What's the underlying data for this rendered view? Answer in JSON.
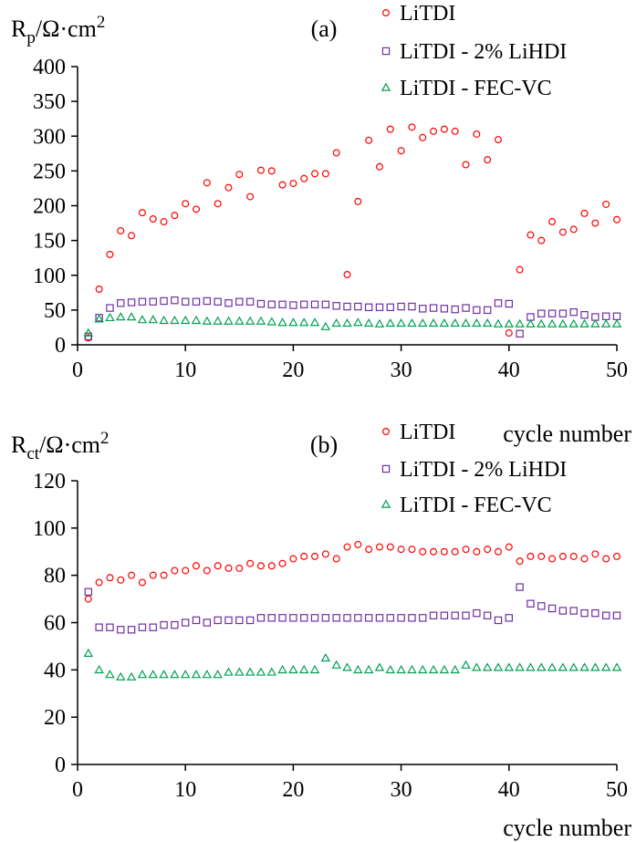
{
  "chart_data": [
    {
      "type": "scatter",
      "panel_label": "(a)",
      "ylabel_main": "R",
      "ylabel_sub": "p",
      "ylabel_unit": "/Ω·cm",
      "ylabel_sup": "2",
      "xlabel": "cycle number",
      "xlim": [
        0,
        50
      ],
      "ylim": [
        0,
        400
      ],
      "x_ticks": [
        "0",
        "10",
        "20",
        "30",
        "40",
        "50"
      ],
      "y_ticks": [
        "0",
        "50",
        "100",
        "150",
        "200",
        "250",
        "300",
        "350",
        "400"
      ],
      "grid": false,
      "legend_position": "top-right",
      "series": [
        {
          "name": "LiTDI",
          "marker": "circle",
          "color": "#ff0000",
          "x": [
            1,
            2,
            3,
            4,
            5,
            6,
            7,
            8,
            9,
            10,
            11,
            12,
            13,
            14,
            15,
            16,
            17,
            18,
            19,
            20,
            21,
            22,
            23,
            24,
            25,
            26,
            27,
            28,
            29,
            30,
            31,
            32,
            33,
            34,
            35,
            36,
            37,
            38,
            39,
            40,
            41,
            42,
            43,
            44,
            45,
            46,
            47,
            48,
            49,
            50
          ],
          "y": [
            10,
            80,
            130,
            164,
            157,
            190,
            181,
            177,
            186,
            203,
            195,
            233,
            203,
            226,
            245,
            213,
            251,
            250,
            230,
            232,
            239,
            246,
            246,
            276,
            101,
            206,
            294,
            256,
            310,
            279,
            313,
            298,
            307,
            310,
            307,
            259,
            303,
            266,
            295,
            17,
            108,
            158,
            150,
            177,
            162,
            166,
            189,
            175,
            202,
            180
          ]
        },
        {
          "name": "LiTDI - 2% LiHDI",
          "marker": "square",
          "color": "#7030a0",
          "x": [
            1,
            2,
            3,
            4,
            5,
            6,
            7,
            8,
            9,
            10,
            11,
            12,
            13,
            14,
            15,
            16,
            17,
            18,
            19,
            20,
            21,
            22,
            23,
            24,
            25,
            26,
            27,
            28,
            29,
            30,
            31,
            32,
            33,
            34,
            35,
            36,
            37,
            38,
            39,
            40,
            41,
            42,
            43,
            44,
            45,
            46,
            47,
            48,
            49,
            50
          ],
          "y": [
            12,
            39,
            53,
            60,
            61,
            62,
            62,
            63,
            64,
            62,
            62,
            63,
            62,
            60,
            62,
            62,
            59,
            58,
            58,
            57,
            58,
            58,
            58,
            56,
            55,
            55,
            54,
            54,
            54,
            55,
            55,
            52,
            53,
            52,
            51,
            53,
            50,
            50,
            60,
            59,
            16,
            40,
            45,
            45,
            45,
            47,
            43,
            40,
            41,
            41
          ]
        },
        {
          "name": "LiTDI - FEC-VC",
          "marker": "triangle",
          "color": "#00a050",
          "x": [
            1,
            2,
            3,
            4,
            5,
            6,
            7,
            8,
            9,
            10,
            11,
            12,
            13,
            14,
            15,
            16,
            17,
            18,
            19,
            20,
            21,
            22,
            23,
            24,
            25,
            26,
            27,
            28,
            29,
            30,
            31,
            32,
            33,
            34,
            35,
            36,
            37,
            38,
            39,
            40,
            41,
            42,
            43,
            44,
            45,
            46,
            47,
            48,
            49,
            50
          ],
          "y": [
            17,
            37,
            39,
            40,
            40,
            36,
            36,
            35,
            35,
            35,
            35,
            34,
            34,
            34,
            34,
            34,
            34,
            33,
            32,
            32,
            32,
            32,
            26,
            31,
            31,
            32,
            31,
            30,
            31,
            31,
            31,
            31,
            31,
            31,
            31,
            31,
            31,
            31,
            30,
            30,
            30,
            30,
            30,
            30,
            30,
            30,
            30,
            30,
            30,
            30
          ]
        }
      ]
    },
    {
      "type": "scatter",
      "panel_label": "(b)",
      "ylabel_main": "R",
      "ylabel_sub": "ct",
      "ylabel_unit": "/Ω·cm",
      "ylabel_sup": "2",
      "xlabel": "cycle number",
      "xlim": [
        0,
        50
      ],
      "ylim": [
        0,
        120
      ],
      "x_ticks": [
        "0",
        "10",
        "20",
        "30",
        "40",
        "50"
      ],
      "y_ticks": [
        "0",
        "20",
        "40",
        "60",
        "80",
        "100",
        "120"
      ],
      "grid": false,
      "legend_position": "top-right",
      "series": [
        {
          "name": "LiTDI",
          "marker": "circle",
          "color": "#ff0000",
          "x": [
            1,
            2,
            3,
            4,
            5,
            6,
            7,
            8,
            9,
            10,
            11,
            12,
            13,
            14,
            15,
            16,
            17,
            18,
            19,
            20,
            21,
            22,
            23,
            24,
            25,
            26,
            27,
            28,
            29,
            30,
            31,
            32,
            33,
            34,
            35,
            36,
            37,
            38,
            39,
            40,
            41,
            42,
            43,
            44,
            45,
            46,
            47,
            48,
            49,
            50
          ],
          "y": [
            70,
            77,
            79,
            78,
            80,
            77,
            80,
            80,
            82,
            82,
            84,
            82,
            84,
            83,
            83,
            85,
            84,
            84,
            85,
            87,
            88,
            88,
            89,
            87,
            92,
            93,
            91,
            92,
            92,
            91,
            91,
            90,
            90,
            90,
            90,
            91,
            90,
            91,
            90,
            92,
            86,
            88,
            88,
            87,
            88,
            88,
            87,
            89,
            87,
            88
          ]
        },
        {
          "name": "LiTDI - 2% LiHDI",
          "marker": "square",
          "color": "#7030a0",
          "x": [
            1,
            2,
            3,
            4,
            5,
            6,
            7,
            8,
            9,
            10,
            11,
            12,
            13,
            14,
            15,
            16,
            17,
            18,
            19,
            20,
            21,
            22,
            23,
            24,
            25,
            26,
            27,
            28,
            29,
            30,
            31,
            32,
            33,
            34,
            35,
            36,
            37,
            38,
            39,
            40,
            41,
            42,
            43,
            44,
            45,
            46,
            47,
            48,
            49,
            50
          ],
          "y": [
            73,
            58,
            58,
            57,
            57,
            58,
            58,
            59,
            59,
            60,
            61,
            60,
            61,
            61,
            61,
            61,
            62,
            62,
            62,
            62,
            62,
            62,
            62,
            62,
            62,
            62,
            62,
            62,
            62,
            62,
            62,
            62,
            63,
            63,
            63,
            63,
            64,
            63,
            61,
            62,
            75,
            68,
            67,
            66,
            65,
            65,
            64,
            64,
            63,
            63
          ]
        },
        {
          "name": "LiTDI - FEC-VC",
          "marker": "triangle",
          "color": "#00a050",
          "x": [
            1,
            2,
            3,
            4,
            5,
            6,
            7,
            8,
            9,
            10,
            11,
            12,
            13,
            14,
            15,
            16,
            17,
            18,
            19,
            20,
            21,
            22,
            23,
            24,
            25,
            26,
            27,
            28,
            29,
            30,
            31,
            32,
            33,
            34,
            35,
            36,
            37,
            38,
            39,
            40,
            41,
            42,
            43,
            44,
            45,
            46,
            47,
            48,
            49,
            50
          ],
          "y": [
            47,
            40,
            38,
            37,
            37,
            38,
            38,
            38,
            38,
            38,
            38,
            38,
            38,
            39,
            39,
            39,
            39,
            39,
            40,
            40,
            40,
            40,
            45,
            42,
            41,
            40,
            40,
            41,
            40,
            40,
            40,
            40,
            40,
            40,
            40,
            42,
            41,
            41,
            41,
            41,
            41,
            41,
            41,
            41,
            41,
            41,
            41,
            41,
            41,
            41
          ]
        }
      ]
    }
  ]
}
